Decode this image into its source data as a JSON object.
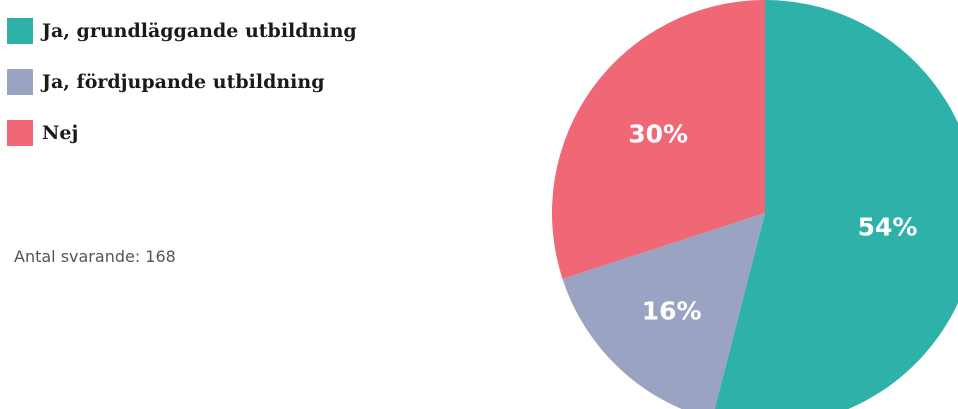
{
  "chart_data": {
    "type": "pie",
    "title": "",
    "categories": [
      "Ja, grundläggande utbildning",
      "Ja, fördjupande utbildning",
      "Nej"
    ],
    "values": [
      54,
      16,
      30
    ],
    "value_labels": [
      "54%",
      "16%",
      "30%"
    ],
    "colors": [
      "#2eb1a8",
      "#9ba3c2",
      "#f06776"
    ],
    "legend_placement": "top-left",
    "annotation": "Antal svarande: 168"
  }
}
